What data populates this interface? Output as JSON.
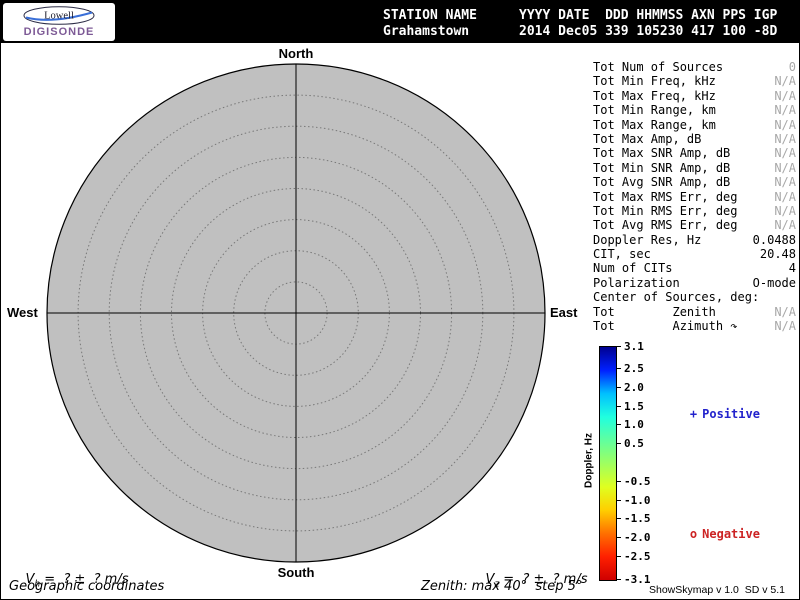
{
  "logo": {
    "brand": "Lowell",
    "product": "DIGISONDE"
  },
  "header": {
    "station_label": "STATION NAME",
    "station_name": "Grahamstown",
    "fields_header": "YYYY DATE  DDD HHMMSS AXN PPS IGP",
    "fields_values": "2014 Dec05 339 105230 417 100 -8D"
  },
  "compass": {
    "north": "North",
    "south": "South",
    "east": "East",
    "west": "West"
  },
  "stats": [
    {
      "label": "Tot Num of Sources",
      "value": "0",
      "muted": true
    },
    {
      "label": "Tot Min Freq, kHz",
      "value": "N/A",
      "muted": true
    },
    {
      "label": "Tot Max Freq, kHz",
      "value": "N/A",
      "muted": true
    },
    {
      "label": "Tot Min Range, km",
      "value": "N/A",
      "muted": true
    },
    {
      "label": "Tot Max Range, km",
      "value": "N/A",
      "muted": true
    },
    {
      "label": "Tot Max Amp, dB",
      "value": "N/A",
      "muted": true
    },
    {
      "label": "Tot Max SNR Amp, dB",
      "value": "N/A",
      "muted": true
    },
    {
      "label": "Tot Min SNR Amp, dB",
      "value": "N/A",
      "muted": true
    },
    {
      "label": "Tot Avg SNR Amp, dB",
      "value": "N/A",
      "muted": true
    },
    {
      "label": "Tot Max RMS Err, deg",
      "value": "N/A",
      "muted": true
    },
    {
      "label": "Tot Min RMS Err, deg",
      "value": "N/A",
      "muted": true
    },
    {
      "label": "Tot Avg RMS Err, deg",
      "value": "N/A",
      "muted": true
    },
    {
      "label": "Doppler Res, Hz",
      "value": "0.0488",
      "muted": false
    },
    {
      "label": "CIT, sec",
      "value": "20.48",
      "muted": false
    },
    {
      "label": "Num of CITs",
      "value": "4",
      "muted": false
    },
    {
      "label": "Polarization",
      "value": "O-mode",
      "muted": false
    },
    {
      "label": "Center of Sources, deg:",
      "value": "",
      "muted": false
    },
    {
      "label": "Tot        Zenith",
      "value": "N/A",
      "muted": true
    },
    {
      "label": "Tot        Azimuth ↷",
      "value": "N/A",
      "muted": true
    }
  ],
  "colorbar": {
    "title": "Doppler, Hz",
    "max": 3.1,
    "min": -3.1,
    "ticks": [
      3.1,
      2.5,
      2.0,
      1.5,
      1.0,
      0.5,
      -0.5,
      -1.0,
      -1.5,
      -2.0,
      -2.5,
      -3.1
    ],
    "tick_labels": [
      "3.1",
      "2.5",
      "2.0",
      "1.5",
      "1.0",
      "0.5",
      "-0.5",
      "-1.0",
      "-1.5",
      "-2.0",
      "-2.5",
      "-3.1"
    ],
    "gradient": [
      "#00008f",
      "#0020ff",
      "#00c0ff",
      "#20ffdf",
      "#60ff9f",
      "#9fff60",
      "#dfff20",
      "#ffcf00",
      "#ff7000",
      "#ff2000",
      "#cf0000"
    ],
    "legend_positive": {
      "marker": "+",
      "label": "Positive",
      "color": "#2222cc"
    },
    "legend_negative": {
      "marker": "o",
      "label": "Negative",
      "color": "#cc2222"
    }
  },
  "plot": {
    "fill": "#c0c0c0",
    "ring_count": 8
  },
  "footer": {
    "vh": {
      "base": "V",
      "sub": "h",
      "rest": " =  ? ±  ? m/s"
    },
    "vz": {
      "base": "V",
      "sub": "z",
      "rest": " =  ? ±  ? m/s"
    },
    "coordinates": "Geographic coordinates",
    "zenith_note": "Zenith: max 40°  step 5°",
    "version": "ShowSkymap v 1.0  SD v 5.1"
  }
}
